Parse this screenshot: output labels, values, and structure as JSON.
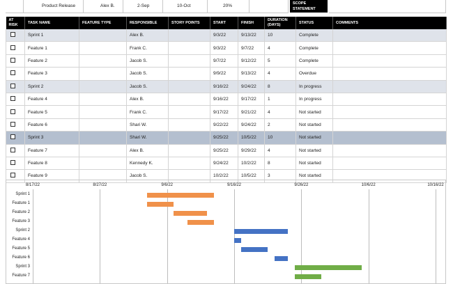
{
  "summary": {
    "project": "Product Release",
    "owner": "Alex B.",
    "start": "2-Sep",
    "end": "10-Oct",
    "progress": "20%",
    "scope_label": "SCOPE STATEMENT"
  },
  "columns": [
    "AT RISK",
    "TASK NAME",
    "FEATURE TYPE",
    "RESPONSIBLE",
    "STORY POINTS",
    "START",
    "FINISH",
    "DURATION (DAYS)",
    "STATUS",
    "COMMENTS"
  ],
  "rows": [
    {
      "task": "Sprint 1",
      "feature_type": "",
      "responsible": "Alex B.",
      "story_points": "",
      "start": "9/3/22",
      "finish": "9/13/22",
      "duration": "10",
      "status": "Complete",
      "comments": "",
      "kind": "sprint-light"
    },
    {
      "task": "Feature 1",
      "feature_type": "",
      "responsible": "Frank C.",
      "story_points": "",
      "start": "9/3/22",
      "finish": "9/7/22",
      "duration": "4",
      "status": "Complete",
      "comments": "",
      "kind": "feature"
    },
    {
      "task": "Feature 2",
      "feature_type": "",
      "responsible": "Jacob S.",
      "story_points": "",
      "start": "9/7/22",
      "finish": "9/12/22",
      "duration": "5",
      "status": "Complete",
      "comments": "",
      "kind": "feature"
    },
    {
      "task": "Feature 3",
      "feature_type": "",
      "responsible": "Jacob S.",
      "story_points": "",
      "start": "9/9/22",
      "finish": "9/13/22",
      "duration": "4",
      "status": "Overdue",
      "comments": "",
      "kind": "feature"
    },
    {
      "task": "Sprint 2",
      "feature_type": "",
      "responsible": "Jacob S.",
      "story_points": "",
      "start": "9/16/22",
      "finish": "9/24/22",
      "duration": "8",
      "status": "In progress",
      "comments": "",
      "kind": "sprint-light"
    },
    {
      "task": "Feature 4",
      "feature_type": "",
      "responsible": "Alex B.",
      "story_points": "",
      "start": "9/16/22",
      "finish": "9/17/22",
      "duration": "1",
      "status": "In progress",
      "comments": "",
      "kind": "feature"
    },
    {
      "task": "Feature 5",
      "feature_type": "",
      "responsible": "Frank C.",
      "story_points": "",
      "start": "9/17/22",
      "finish": "9/21/22",
      "duration": "4",
      "status": "Not started",
      "comments": "",
      "kind": "feature"
    },
    {
      "task": "Feature 6",
      "feature_type": "",
      "responsible": "Shari W.",
      "story_points": "",
      "start": "9/22/22",
      "finish": "9/24/22",
      "duration": "2",
      "status": "Not started",
      "comments": "",
      "kind": "feature"
    },
    {
      "task": "Sprint 3",
      "feature_type": "",
      "responsible": "Shari W.",
      "story_points": "",
      "start": "9/25/22",
      "finish": "10/5/22",
      "duration": "10",
      "status": "Not started",
      "comments": "",
      "kind": "sprint-dark"
    },
    {
      "task": "Feature 7",
      "feature_type": "",
      "responsible": "Alex B.",
      "story_points": "",
      "start": "9/25/22",
      "finish": "9/29/22",
      "duration": "4",
      "status": "Not started",
      "comments": "",
      "kind": "feature"
    },
    {
      "task": "Feature 8",
      "feature_type": "",
      "responsible": "Kennedy K.",
      "story_points": "",
      "start": "9/24/22",
      "finish": "10/2/22",
      "duration": "8",
      "status": "Not started",
      "comments": "",
      "kind": "feature"
    },
    {
      "task": "Feature 9",
      "feature_type": "",
      "responsible": "Jacob S.",
      "story_points": "",
      "start": "10/2/22",
      "finish": "10/5/22",
      "duration": "3",
      "status": "Not started",
      "comments": "",
      "kind": "feature"
    }
  ],
  "gantt": {
    "axis_dates": [
      "8/17/22",
      "8/27/22",
      "9/6/22",
      "9/16/22",
      "9/26/22",
      "10/6/22",
      "10/16/22"
    ],
    "axis_start": "2022-08-17",
    "axis_end": "2022-10-16",
    "bars": [
      {
        "label": "Sprint 1",
        "start": "2022-09-03",
        "end": "2022-09-13",
        "color": "#f0914a"
      },
      {
        "label": "Feature 1",
        "start": "2022-09-03",
        "end": "2022-09-07",
        "color": "#f0914a"
      },
      {
        "label": "Feature 2",
        "start": "2022-09-07",
        "end": "2022-09-12",
        "color": "#f0914a"
      },
      {
        "label": "Feature 3",
        "start": "2022-09-09",
        "end": "2022-09-13",
        "color": "#f0914a"
      },
      {
        "label": "Sprint 2",
        "start": "2022-09-16",
        "end": "2022-09-24",
        "color": "#4472c4"
      },
      {
        "label": "Feature 4",
        "start": "2022-09-16",
        "end": "2022-09-17",
        "color": "#4472c4"
      },
      {
        "label": "Feature 5",
        "start": "2022-09-17",
        "end": "2022-09-21",
        "color": "#4472c4"
      },
      {
        "label": "Feature 6",
        "start": "2022-09-22",
        "end": "2022-09-24",
        "color": "#4472c4"
      },
      {
        "label": "Sprint 3",
        "start": "2022-09-25",
        "end": "2022-10-05",
        "color": "#70ad47"
      },
      {
        "label": "Feature 7",
        "start": "2022-09-25",
        "end": "2022-09-29",
        "color": "#70ad47"
      }
    ]
  }
}
